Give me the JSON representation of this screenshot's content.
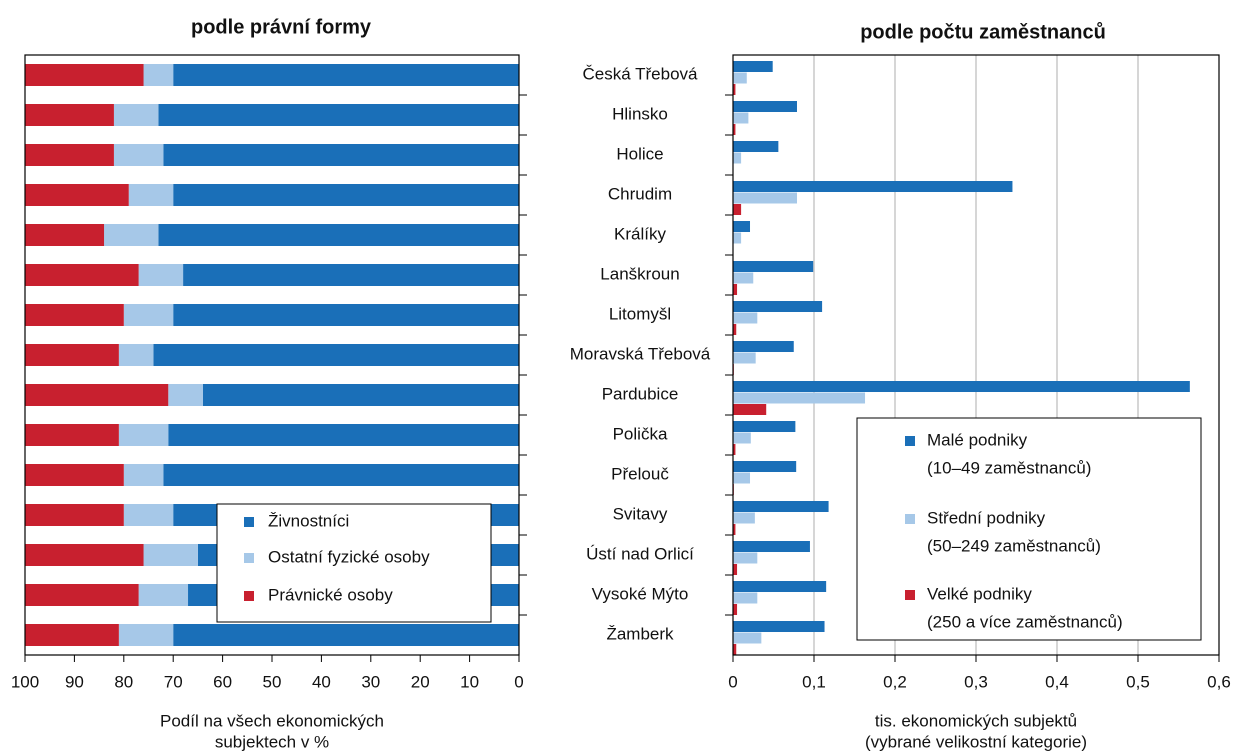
{
  "chart_data": [
    {
      "type": "bar",
      "horizontal": true,
      "stacked": true,
      "title": "podle právní formy",
      "xlabel": [
        "Podíl na všech ekonomických",
        "subjektech v %"
      ],
      "xlim": [
        100,
        0
      ],
      "xticks": [
        100,
        90,
        80,
        70,
        60,
        50,
        40,
        30,
        20,
        10,
        0
      ],
      "grid": false,
      "series": [
        {
          "name": [
            "Živnostníci"
          ],
          "color": "#1a6fb8",
          "values": [
            70,
            73,
            72,
            70,
            73,
            68,
            70,
            74,
            64,
            71,
            72,
            70,
            65,
            67,
            70
          ]
        },
        {
          "name": [
            "Ostatní fyzické osoby"
          ],
          "color": "#a6c8e8",
          "values": [
            6,
            9,
            10,
            9,
            11,
            9,
            10,
            7,
            7,
            10,
            8,
            10,
            11,
            10,
            11
          ]
        },
        {
          "name": [
            "Právnické osoby"
          ],
          "color": "#c8202f",
          "values": [
            24,
            18,
            18,
            21,
            16,
            23,
            20,
            19,
            29,
            19,
            20,
            20,
            24,
            23,
            19
          ]
        }
      ]
    },
    {
      "type": "bar",
      "horizontal": true,
      "stacked": false,
      "title": "podle počtu zaměstnanců",
      "xlabel": [
        "tis. ekonomických subjektů",
        "(vybrané velikostní kategorie)"
      ],
      "categories": [
        "Česká Třebová",
        "Hlinsko",
        "Holice",
        "Chrudim",
        "Králíky",
        "Lanškroun",
        "Litomyšl",
        "Moravská Třebová",
        "Pardubice",
        "Polička",
        "Přelouč",
        "Svitavy",
        "Ústí nad Orlicí",
        "Vysoké Mýto",
        "Žamberk"
      ],
      "xlim": [
        0,
        0.6
      ],
      "xticks": [
        0,
        {
          "value": 0.1,
          "label": "0,1"
        },
        {
          "value": 0.2,
          "label": "0,2"
        },
        {
          "value": 0.3,
          "label": "0,3"
        },
        {
          "value": 0.4,
          "label": "0,4"
        },
        {
          "value": 0.5,
          "label": "0,5"
        },
        {
          "value": 0.6,
          "label": "0,6"
        }
      ],
      "grid": true,
      "series": [
        {
          "name": [
            "Malé podniky",
            "(10–49 zaměstnanců)"
          ],
          "color": "#1a6fb8",
          "values": [
            0.049,
            0.079,
            0.056,
            0.345,
            0.021,
            0.099,
            0.11,
            0.075,
            0.564,
            0.077,
            0.078,
            0.118,
            0.095,
            0.115,
            0.113
          ]
        },
        {
          "name": [
            "Střední podniky",
            "(50–249 zaměstnanců)"
          ],
          "color": "#a6c8e8",
          "values": [
            0.017,
            0.019,
            0.01,
            0.079,
            0.01,
            0.025,
            0.03,
            0.028,
            0.163,
            0.022,
            0.021,
            0.027,
            0.03,
            0.03,
            0.035
          ]
        },
        {
          "name": [
            "Velké podniky",
            "(250 a více zaměstnanců)"
          ],
          "color": "#c8202f",
          "values": [
            0.003,
            0.003,
            0,
            0.01,
            0,
            0.005,
            0.004,
            0.001,
            0.041,
            0.003,
            0.001,
            0.003,
            0.005,
            0.005,
            0.004
          ]
        }
      ]
    }
  ]
}
